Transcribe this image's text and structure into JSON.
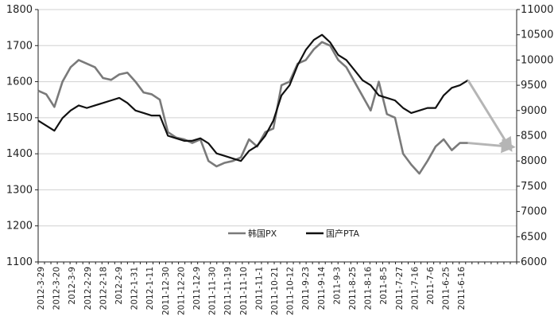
{
  "chart_data": {
    "type": "line",
    "title": "",
    "xlabel": "",
    "ylabel": "",
    "ylim": [
      1100,
      1800
    ],
    "y2lim": [
      6000,
      11000
    ],
    "y_ticks": [
      "1800",
      "1700",
      "1600",
      "1500",
      "1400",
      "1300",
      "1200",
      "1100"
    ],
    "y2_ticks": [
      "11000",
      "10500",
      "10000",
      "9500",
      "9000",
      "8500",
      "8000",
      "7500",
      "7000",
      "6500",
      "6000"
    ],
    "x_ticks": [
      "2012-3-29",
      "2012-3-20",
      "2012-3-9",
      "2012-2-29",
      "2012-2-18",
      "2012-2-9",
      "2012-1-31",
      "2012-1-11",
      "2011-12-30",
      "2011-12-20",
      "2011-12-9",
      "2011-11-30",
      "2011-11-19",
      "2011-11-10",
      "2011-11-1",
      "2011-10-21",
      "2011-10-12",
      "2011-9-23",
      "2011-9-14",
      "2011-9-3",
      "2011-8-25",
      "2011-8-16",
      "2011-8-5",
      "2011-7-27",
      "2011-7-16",
      "2011-7-6",
      "2011-6-25",
      "2011-6-16"
    ],
    "legend_position": "bottom-center",
    "grid": "horizontal",
    "series": [
      {
        "name": "韩国PX",
        "axis": "left",
        "color": "#7a7a7a",
        "values": [
          1575,
          1565,
          1530,
          1600,
          1640,
          1660,
          1650,
          1640,
          1610,
          1605,
          1620,
          1625,
          1600,
          1570,
          1565,
          1550,
          1460,
          1445,
          1440,
          1430,
          1440,
          1380,
          1365,
          1375,
          1380,
          1390,
          1440,
          1420,
          1460,
          1470,
          1590,
          1600,
          1650,
          1660,
          1690,
          1710,
          1700,
          1660,
          1640,
          1600,
          1560,
          1520,
          1600,
          1510,
          1500,
          1400,
          1370,
          1345,
          1380,
          1420,
          1440,
          1410,
          1430,
          1430
        ]
      },
      {
        "name": "国产PTA",
        "axis": "right",
        "color": "#111111",
        "values": [
          8800,
          8700,
          8600,
          8850,
          9000,
          9100,
          9050,
          9100,
          9150,
          9200,
          9250,
          9150,
          9000,
          8950,
          8900,
          8900,
          8500,
          8450,
          8400,
          8400,
          8450,
          8350,
          8150,
          8100,
          8050,
          8000,
          8200,
          8300,
          8500,
          8800,
          9300,
          9500,
          9900,
          10200,
          10400,
          10500,
          10350,
          10100,
          10000,
          9800,
          9600,
          9500,
          9300,
          9250,
          9200,
          9050,
          8950,
          9000,
          9050,
          9050,
          9300,
          9450,
          9500,
          9600
        ]
      },
      {
        "name": "",
        "axis": "left",
        "color": "#b5b5b5",
        "role": "forecast-arrow",
        "x_index": [
          53,
          58
        ],
        "values": [
          1430,
          1420
        ]
      },
      {
        "name": "",
        "axis": "right",
        "color": "#b5b5b5",
        "role": "forecast-arrow",
        "x_index": [
          53,
          58
        ],
        "values": [
          9600,
          8300
        ]
      }
    ]
  }
}
